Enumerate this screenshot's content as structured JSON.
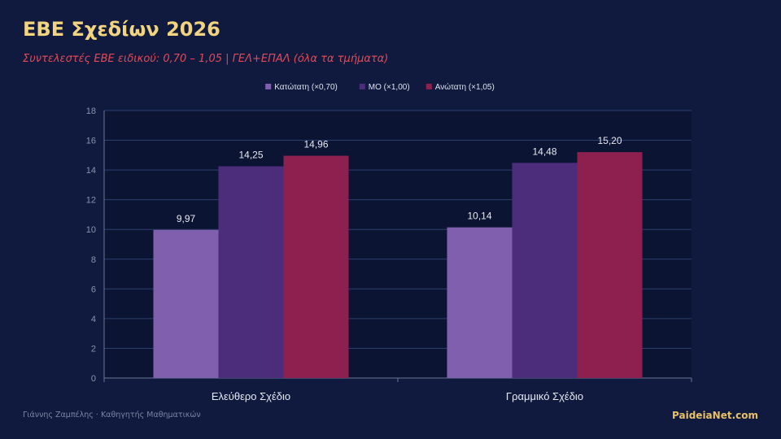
{
  "header": {
    "title": "ΕΒΕ Σχεδίων 2026",
    "subtitle": "Συντελεστές ΕΒΕ ειδικού: 0,70 – 1,05 | ΓΕΛ+ΕΠΑΛ (όλα τα τμήματα)"
  },
  "footer": {
    "author": "Γιάννης Ζαμπέλης · Καθηγητής Μαθηματικών",
    "brand": "PaideiaNet.com"
  },
  "chart_data": {
    "type": "bar",
    "categories": [
      "Ελεύθερο Σχέδιο",
      "Γραμμικό Σχέδιο"
    ],
    "series": [
      {
        "name": "Κατώτατη (×0,70)",
        "values": [
          9.97,
          10.14
        ],
        "labels": [
          "9,97",
          "10,14"
        ],
        "color": "#7f5fae"
      },
      {
        "name": "ΜΟ (×1,00)",
        "values": [
          14.25,
          14.48
        ],
        "labels": [
          "14,25",
          "14,48"
        ],
        "color": "#4b2d7c"
      },
      {
        "name": "Ανώτατη (×1,05)",
        "values": [
          14.96,
          15.2
        ],
        "labels": [
          "14,96",
          "15,20"
        ],
        "color": "#8e2050"
      }
    ],
    "ylim": [
      0,
      18
    ],
    "yticks": [
      "0",
      "2",
      "4",
      "6",
      "8",
      "10",
      "12",
      "14",
      "16",
      "18"
    ],
    "grid": true,
    "legend": "top"
  }
}
